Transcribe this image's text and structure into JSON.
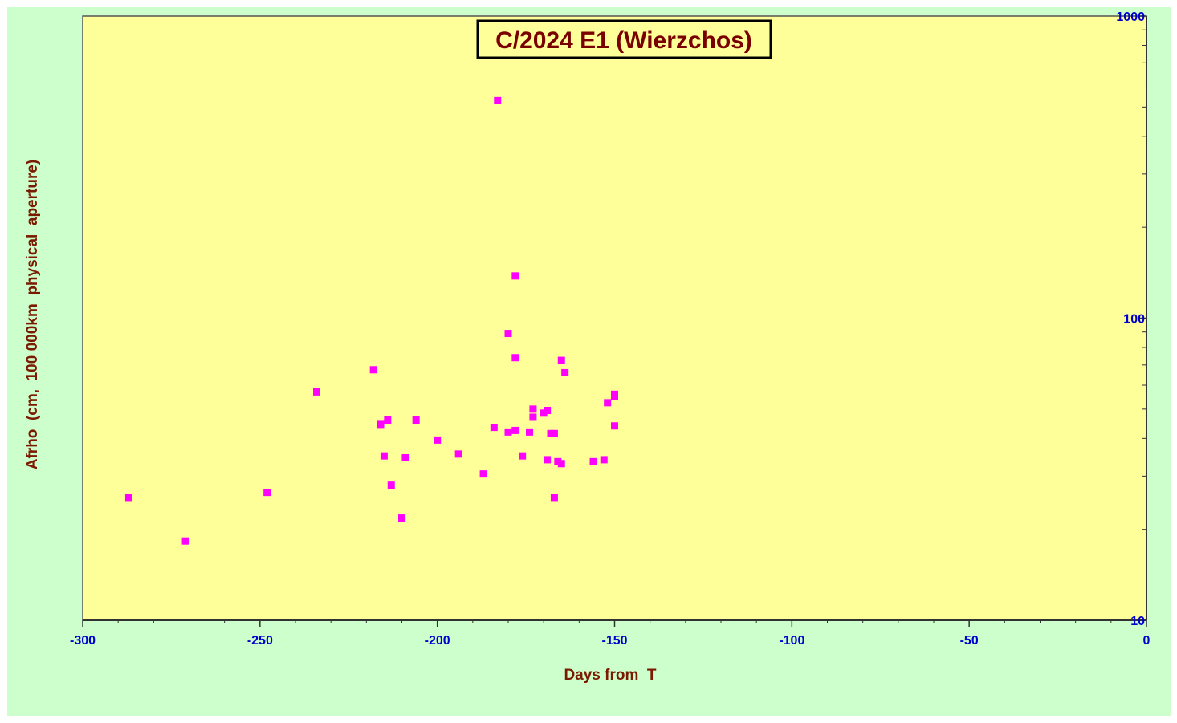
{
  "chart_data": {
    "type": "scatter",
    "title": "C/2024 E1 (Wierzchos)",
    "xlabel": "Days from  T",
    "ylabel": "Afrho  (cm,  100 000km  physical  aperture)",
    "xlim": [
      -300,
      0
    ],
    "ylim": [
      10,
      1000
    ],
    "y_scale": "log",
    "y_axis_side": "right",
    "x_ticks": [
      -300,
      -250,
      -200,
      -150,
      -100,
      -50,
      0
    ],
    "x_tick_labels": [
      "-300",
      "-250",
      "-200",
      "-150",
      "-100",
      "-50",
      "0"
    ],
    "y_ticks": [
      10,
      100,
      1000
    ],
    "y_tick_labels": [
      "10",
      "100",
      "1000"
    ],
    "grid": false,
    "colors": {
      "plot_background": "#ffff99",
      "outer_background": "#ccffcc",
      "marker": "#ff00ff",
      "tick_labels": "#0000cc",
      "titles": "#7a1a00"
    },
    "series": [
      {
        "marker": "square",
        "points": [
          [
            -287,
            25.5
          ],
          [
            -271,
            18.3
          ],
          [
            -248,
            26.5
          ],
          [
            -234,
            57
          ],
          [
            -218,
            67.5
          ],
          [
            -216,
            44.5
          ],
          [
            -215,
            35
          ],
          [
            -214,
            46
          ],
          [
            -213,
            28
          ],
          [
            -210,
            21.8
          ],
          [
            -209,
            34.5
          ],
          [
            -206,
            46
          ],
          [
            -200,
            39.5
          ],
          [
            -194,
            35.5
          ],
          [
            -187,
            30.5
          ],
          [
            -184,
            43.5
          ],
          [
            -183,
            525
          ],
          [
            -180,
            42
          ],
          [
            -180,
            89
          ],
          [
            -178,
            42.5
          ],
          [
            -178,
            138
          ],
          [
            -178,
            74
          ],
          [
            -176,
            35
          ],
          [
            -174,
            42
          ],
          [
            -173,
            47
          ],
          [
            -173,
            50
          ],
          [
            -170,
            48.5
          ],
          [
            -169,
            49.5
          ],
          [
            -169,
            34
          ],
          [
            -168,
            41.5
          ],
          [
            -167,
            41.5
          ],
          [
            -167,
            25.5
          ],
          [
            -166,
            33.5
          ],
          [
            -165,
            33
          ],
          [
            -165,
            72.5
          ],
          [
            -164,
            66
          ],
          [
            -156,
            33.5
          ],
          [
            -153,
            34
          ],
          [
            -152,
            52.5
          ],
          [
            -150,
            55
          ],
          [
            -150,
            56
          ],
          [
            -150,
            44
          ]
        ]
      }
    ]
  }
}
